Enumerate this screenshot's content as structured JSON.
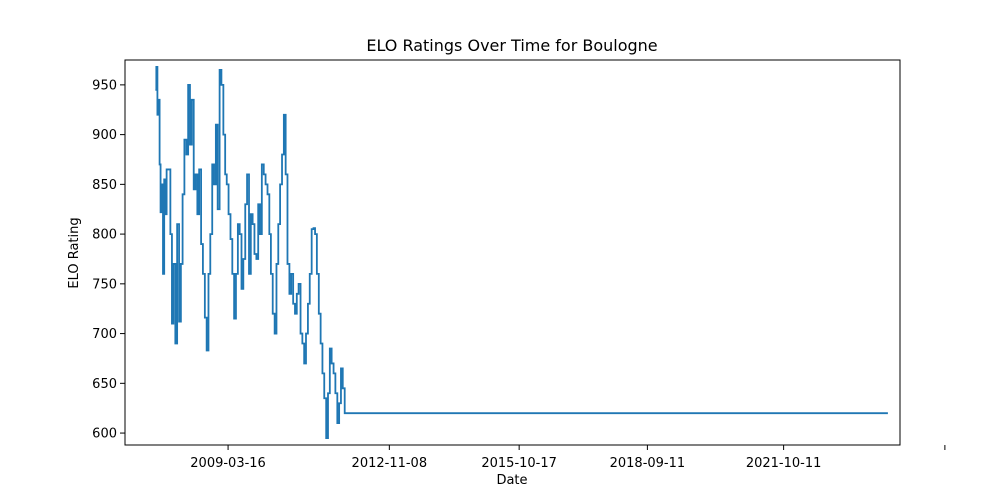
{
  "chart_data": {
    "type": "line",
    "title": "ELO Ratings Over Time for Boulogne",
    "xlabel": "Date",
    "ylabel": "ELO Rating",
    "grid": false,
    "legend": "none",
    "x_ticks": [
      "2009-03-16",
      "2012-11-08",
      "2015-10-17",
      "2018-09-11",
      "2021-10-11",
      ""
    ],
    "y_ticks": [
      600,
      650,
      700,
      750,
      800,
      850,
      900,
      950
    ],
    "xlim": [
      "2006-11-15",
      "2024-05-30"
    ],
    "ylim": [
      588,
      975
    ],
    "series": [
      {
        "color": "#1f77b4",
        "x": [
          "2007-07-24",
          "2007-08-01",
          "2007-08-10",
          "2007-08-20",
          "2007-08-28",
          "2007-09-05",
          "2007-09-15",
          "2007-09-25",
          "2007-10-05",
          "2007-10-15",
          "2007-10-25",
          "2007-11-10",
          "2007-11-25",
          "2007-12-08",
          "2007-12-20",
          "2008-01-05",
          "2008-01-20",
          "2008-02-05",
          "2008-02-20",
          "2008-03-05",
          "2008-03-20",
          "2008-04-05",
          "2008-04-20",
          "2008-05-05",
          "2008-05-20",
          "2008-06-05",
          "2008-06-20",
          "2008-07-05",
          "2008-07-20",
          "2008-08-05",
          "2008-08-20",
          "2008-09-05",
          "2008-09-20",
          "2008-10-05",
          "2008-10-20",
          "2008-11-05",
          "2008-11-20",
          "2008-12-05",
          "2008-12-20",
          "2009-01-05",
          "2009-01-20",
          "2009-02-05",
          "2009-02-20",
          "2009-03-05",
          "2009-03-20",
          "2009-04-05",
          "2009-04-20",
          "2009-05-05",
          "2009-05-20",
          "2009-06-05",
          "2009-06-20",
          "2009-07-05",
          "2009-07-20",
          "2009-08-05",
          "2009-08-20",
          "2009-09-05",
          "2009-09-20",
          "2009-10-05",
          "2009-10-20",
          "2009-11-05",
          "2009-11-20",
          "2009-12-05",
          "2009-12-20",
          "2010-01-05",
          "2010-01-20",
          "2010-02-05",
          "2010-02-20",
          "2010-03-05",
          "2010-03-20",
          "2010-04-05",
          "2010-04-20",
          "2010-05-05",
          "2010-05-20",
          "2010-06-05",
          "2010-06-20",
          "2010-07-05",
          "2010-07-20",
          "2010-08-05",
          "2010-08-20",
          "2010-09-05",
          "2010-09-20",
          "2010-10-05",
          "2010-10-20",
          "2010-11-05",
          "2010-11-20",
          "2010-12-05",
          "2010-12-20",
          "2011-01-05",
          "2011-01-20",
          "2011-02-05",
          "2011-02-20",
          "2011-03-05",
          "2011-03-20",
          "2011-04-05",
          "2011-04-20",
          "2011-05-05",
          "2011-05-20",
          "2011-06-05",
          "2011-06-20",
          "2011-07-05",
          "2011-07-20",
          "2011-08-05",
          "2011-08-20",
          "2011-09-05",
          "2011-09-20",
          "2011-10-05",
          "2011-10-20",
          "2011-11-05",
          "2011-11-20",
          "2011-12-05",
          "2011-12-20",
          "2012-01-05",
          "2012-01-20",
          "2012-02-05",
          "2012-02-20",
          "2012-03-05",
          "2012-03-20",
          "2012-04-05",
          "2012-04-20",
          "2012-05-05",
          "2012-05-20",
          "2024-02-20"
        ],
        "y": [
          945,
          968,
          920,
          935,
          870,
          822,
          850,
          760,
          855,
          820,
          865,
          865,
          800,
          710,
          770,
          690,
          810,
          712,
          770,
          840,
          895,
          880,
          950,
          890,
          935,
          845,
          860,
          820,
          865,
          790,
          760,
          716,
          683,
          760,
          800,
          870,
          850,
          910,
          825,
          965,
          950,
          900,
          860,
          850,
          820,
          795,
          760,
          715,
          760,
          810,
          800,
          745,
          775,
          830,
          860,
          760,
          820,
          810,
          780,
          775,
          830,
          800,
          870,
          860,
          850,
          840,
          800,
          760,
          720,
          700,
          770,
          810,
          850,
          880,
          920,
          860,
          770,
          740,
          760,
          730,
          720,
          740,
          750,
          700,
          690,
          670,
          700,
          730,
          760,
          805,
          806,
          800,
          760,
          720,
          690,
          660,
          635,
          595,
          640,
          685,
          670,
          660,
          640,
          610,
          630,
          665,
          645,
          620,
          620,
          620,
          620,
          620,
          620,
          620,
          620,
          620,
          620,
          620,
          620,
          620,
          620,
          620
        ]
      }
    ]
  }
}
